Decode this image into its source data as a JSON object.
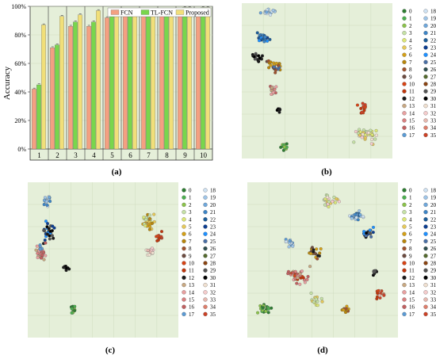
{
  "panels": {
    "a": {
      "label": "(a)"
    },
    "b": {
      "label": "(b)"
    },
    "c": {
      "label": "(c)"
    },
    "d": {
      "label": "(d)"
    }
  },
  "colors": {
    "fcn": "#f4a081",
    "tlfcn": "#79d64c",
    "proposed": "#f1df79",
    "panel_bg": "#e5efd9",
    "grid": "#cfdcc0"
  },
  "class_labels": [
    "0",
    "1",
    "2",
    "3",
    "4",
    "5",
    "6",
    "7",
    "8",
    "9",
    "10",
    "11",
    "12",
    "13",
    "14",
    "15",
    "16",
    "17",
    "18",
    "19",
    "20",
    "21",
    "22",
    "23",
    "24",
    "25",
    "26",
    "27",
    "28",
    "29",
    "30",
    "31",
    "32",
    "33",
    "34",
    "35"
  ],
  "class_colors": [
    "#2e7d32",
    "#4caf50",
    "#8bc34a",
    "#c5e1a5",
    "#dce775",
    "#e6c95a",
    "#d4a017",
    "#b8860b",
    "#a0522d",
    "#6d4c41",
    "#d84315",
    "#bf360c",
    "#1a1a1a",
    "#c8a882",
    "#e8a0a0",
    "#d98080",
    "#c06060",
    "#5b9bd5",
    "#cfe2f3",
    "#9fc5e8",
    "#6fa8dc",
    "#3d85c6",
    "#1c5d99",
    "#0b3d91",
    "#1e90ff",
    "#4a6fa5",
    "#2f4f4f",
    "#556b2f",
    "#8b4513",
    "#555555",
    "#000000",
    "#f0e0d0",
    "#f4cccc",
    "#e6b8af",
    "#dd7e6b",
    "#cc4125"
  ],
  "chart_data": [
    {
      "type": "bar",
      "title": "",
      "xlabel": "",
      "ylabel": "Accuracy",
      "ylim": [
        0,
        100
      ],
      "ytick_labels": [
        "0%",
        "20%",
        "40%",
        "60%",
        "80%",
        "100%"
      ],
      "categories": [
        "1",
        "2",
        "3",
        "4",
        "5",
        "6",
        "7",
        "8",
        "9",
        "10"
      ],
      "legend_position": "top-right",
      "series": [
        {
          "name": "FCN",
          "values": [
            42,
            71,
            86,
            86,
            92,
            95,
            97,
            96,
            98,
            98
          ]
        },
        {
          "name": "TL-FCN",
          "values": [
            45,
            73,
            89,
            89,
            95,
            96,
            98,
            97,
            99,
            99
          ]
        },
        {
          "name": "Proposed",
          "values": [
            87,
            93,
            94,
            97,
            96,
            97,
            98,
            98,
            99,
            99
          ]
        }
      ]
    },
    {
      "type": "scatter",
      "panel": "b",
      "legend_position": "right",
      "clusters": [
        {
          "classes": [
            18,
            19,
            20
          ],
          "center": [
            0.18,
            0.06
          ],
          "spread": [
            0.06,
            0.04
          ],
          "count": 22
        },
        {
          "classes": [
            21,
            22,
            23,
            24
          ],
          "center": [
            0.14,
            0.22
          ],
          "spread": [
            0.07,
            0.05
          ],
          "count": 26
        },
        {
          "classes": [
            12,
            29,
            30
          ],
          "center": [
            0.1,
            0.35
          ],
          "spread": [
            0.05,
            0.04
          ],
          "count": 18
        },
        {
          "classes": [
            6,
            7,
            8,
            9,
            25
          ],
          "center": [
            0.22,
            0.4
          ],
          "spread": [
            0.08,
            0.05
          ],
          "count": 26
        },
        {
          "classes": [
            13,
            14,
            15,
            16
          ],
          "center": [
            0.2,
            0.55
          ],
          "spread": [
            0.04,
            0.06
          ],
          "count": 14
        },
        {
          "classes": [
            12,
            30
          ],
          "center": [
            0.25,
            0.68
          ],
          "spread": [
            0.02,
            0.03
          ],
          "count": 6
        },
        {
          "classes": [
            0,
            1,
            2
          ],
          "center": [
            0.28,
            0.92
          ],
          "spread": [
            0.04,
            0.04
          ],
          "count": 16
        },
        {
          "classes": [
            10,
            11,
            35
          ],
          "center": [
            0.8,
            0.68
          ],
          "spread": [
            0.05,
            0.05
          ],
          "count": 12
        },
        {
          "classes": [
            3,
            4,
            5,
            31,
            32
          ],
          "center": [
            0.83,
            0.85
          ],
          "spread": [
            0.1,
            0.07
          ],
          "count": 40
        }
      ]
    },
    {
      "type": "scatter",
      "panel": "c",
      "legend_position": "right",
      "clusters": [
        {
          "classes": [
            18,
            19,
            20,
            21
          ],
          "center": [
            0.13,
            0.12
          ],
          "spread": [
            0.04,
            0.05
          ],
          "count": 20
        },
        {
          "classes": [
            12,
            29,
            30,
            23,
            24
          ],
          "center": [
            0.14,
            0.32
          ],
          "spread": [
            0.06,
            0.08
          ],
          "count": 34
        },
        {
          "classes": [
            13,
            14,
            15,
            16,
            17
          ],
          "center": [
            0.09,
            0.45
          ],
          "spread": [
            0.05,
            0.08
          ],
          "count": 30
        },
        {
          "classes": [
            12,
            30
          ],
          "center": [
            0.26,
            0.55
          ],
          "spread": [
            0.03,
            0.03
          ],
          "count": 10
        },
        {
          "classes": [
            0,
            1,
            2
          ],
          "center": [
            0.3,
            0.82
          ],
          "spread": [
            0.02,
            0.05
          ],
          "count": 16
        },
        {
          "classes": [
            3,
            4,
            5,
            6,
            7
          ],
          "center": [
            0.8,
            0.25
          ],
          "spread": [
            0.05,
            0.08
          ],
          "count": 32
        },
        {
          "classes": [
            10,
            11,
            35
          ],
          "center": [
            0.87,
            0.35
          ],
          "spread": [
            0.03,
            0.05
          ],
          "count": 14
        },
        {
          "classes": [
            31,
            32,
            33
          ],
          "center": [
            0.81,
            0.45
          ],
          "spread": [
            0.05,
            0.04
          ],
          "count": 16
        }
      ]
    },
    {
      "type": "scatter",
      "panel": "d",
      "legend_position": "right",
      "clusters": [
        {
          "classes": [
            3,
            4,
            5,
            31,
            32
          ],
          "center": [
            0.55,
            0.12
          ],
          "spread": [
            0.08,
            0.05
          ],
          "count": 26
        },
        {
          "classes": [
            18,
            19,
            20,
            21,
            22
          ],
          "center": [
            0.72,
            0.22
          ],
          "spread": [
            0.07,
            0.05
          ],
          "count": 24
        },
        {
          "classes": [
            23,
            24,
            25,
            29,
            30
          ],
          "center": [
            0.8,
            0.32
          ],
          "spread": [
            0.07,
            0.05
          ],
          "count": 22
        },
        {
          "classes": [
            17,
            18,
            19
          ],
          "center": [
            0.28,
            0.4
          ],
          "spread": [
            0.04,
            0.05
          ],
          "count": 14
        },
        {
          "classes": [
            6,
            7,
            8,
            9,
            12
          ],
          "center": [
            0.45,
            0.45
          ],
          "spread": [
            0.06,
            0.05
          ],
          "count": 20
        },
        {
          "classes": [
            13,
            14,
            15,
            16,
            10,
            11
          ],
          "center": [
            0.33,
            0.6
          ],
          "spread": [
            0.1,
            0.08
          ],
          "count": 40
        },
        {
          "classes": [
            3,
            4,
            5
          ],
          "center": [
            0.45,
            0.75
          ],
          "spread": [
            0.06,
            0.06
          ],
          "count": 16
        },
        {
          "classes": [
            0,
            1,
            2
          ],
          "center": [
            0.12,
            0.82
          ],
          "spread": [
            0.06,
            0.05
          ],
          "count": 22
        },
        {
          "classes": [
            6,
            7,
            8
          ],
          "center": [
            0.65,
            0.82
          ],
          "spread": [
            0.04,
            0.04
          ],
          "count": 12
        },
        {
          "classes": [
            12,
            29,
            30
          ],
          "center": [
            0.85,
            0.58
          ],
          "spread": [
            0.03,
            0.03
          ],
          "count": 8
        },
        {
          "classes": [
            10,
            11,
            35,
            33
          ],
          "center": [
            0.88,
            0.72
          ],
          "spread": [
            0.05,
            0.06
          ],
          "count": 16
        }
      ]
    }
  ]
}
